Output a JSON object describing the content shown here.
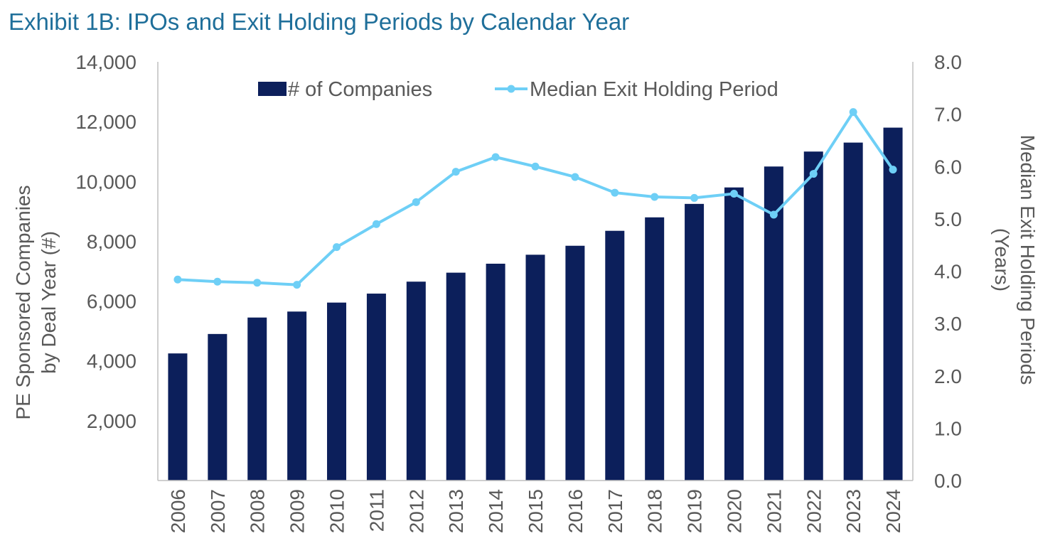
{
  "title": "Exhibit 1B: IPOs and Exit Holding Periods by Calendar Year",
  "chart_data": {
    "type": "bar",
    "categories": [
      "2006",
      "2007",
      "2008",
      "2009",
      "2010",
      "2011",
      "2012",
      "2013",
      "2014",
      "2015",
      "2016",
      "2017",
      "2018",
      "2019",
      "2020",
      "2021",
      "2022",
      "2023",
      "2024"
    ],
    "series": [
      {
        "name": "# of Companies",
        "type": "bar",
        "axis": "left",
        "color": "#0c1f5b",
        "values": [
          4250,
          4900,
          5450,
          5650,
          5950,
          6250,
          6650,
          6950,
          7250,
          7550,
          7850,
          8350,
          8800,
          9250,
          9800,
          10500,
          11000,
          11300,
          11800
        ]
      },
      {
        "name": "Median Exit Holding Period",
        "type": "line",
        "axis": "right",
        "color": "#6ecff6",
        "values": [
          3.84,
          3.8,
          3.78,
          3.74,
          4.46,
          4.9,
          5.32,
          5.9,
          6.18,
          6.0,
          5.8,
          5.5,
          5.42,
          5.4,
          5.48,
          5.08,
          5.86,
          7.04,
          5.94
        ]
      }
    ],
    "yleft": {
      "label_lines": [
        "PE Sponsored Companies",
        "by Deal Year (#)"
      ],
      "ylim": [
        0,
        14000
      ],
      "ticks": [
        2000,
        4000,
        6000,
        8000,
        10000,
        12000,
        14000
      ],
      "tick_labels": [
        "2,000",
        "4,000",
        "6,000",
        "8,000",
        "10,000",
        "12,000",
        "14,000"
      ]
    },
    "yright": {
      "label_lines": [
        "Median Exit Holding Periods",
        "(Years)"
      ],
      "ylim": [
        0,
        8
      ],
      "ticks": [
        0,
        1,
        2,
        3,
        4,
        5,
        6,
        7,
        8
      ],
      "tick_labels": [
        "0.0",
        "1.0",
        "2.0",
        "3.0",
        "4.0",
        "5.0",
        "6.0",
        "7.0",
        "8.0"
      ]
    },
    "grid": false,
    "legend_position": "top-center"
  }
}
